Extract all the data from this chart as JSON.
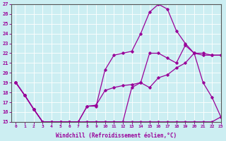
{
  "xlabel": "Windchill (Refroidissement éolien,°C)",
  "background_color": "#cceef2",
  "line_color": "#990099",
  "xlim": [
    -0.5,
    23
  ],
  "ylim": [
    15,
    27
  ],
  "yticks": [
    15,
    16,
    17,
    18,
    19,
    20,
    21,
    22,
    23,
    24,
    25,
    26,
    27
  ],
  "xticks": [
    0,
    1,
    2,
    3,
    4,
    5,
    6,
    7,
    8,
    9,
    10,
    11,
    12,
    13,
    14,
    15,
    16,
    17,
    18,
    19,
    20,
    21,
    22,
    23
  ],
  "line1_x": [
    0,
    1,
    2,
    3,
    4,
    5,
    6,
    7,
    8,
    9,
    10,
    11,
    12,
    13,
    14,
    15,
    16,
    17,
    18,
    19,
    20,
    21,
    22,
    23
  ],
  "line1_y": [
    19,
    17.7,
    16.3,
    15.0,
    15.0,
    15.0,
    15.0,
    14.9,
    15.0,
    15.0,
    15.0,
    15.0,
    15.0,
    15.0,
    15.0,
    15.0,
    15.0,
    15.0,
    15.0,
    15.0,
    15.0,
    15.0,
    15.0,
    15.5
  ],
  "line2_x": [
    0,
    1,
    2,
    3,
    4,
    5,
    6,
    7,
    8,
    9,
    10,
    11,
    12,
    13,
    14,
    15,
    16,
    17,
    18,
    19,
    20,
    21,
    22,
    23
  ],
  "line2_y": [
    19,
    17.7,
    16.3,
    15.0,
    15.0,
    15.0,
    15.0,
    15.0,
    16.6,
    16.7,
    18.2,
    18.5,
    18.7,
    18.8,
    19.0,
    18.5,
    19.5,
    19.8,
    20.5,
    21.0,
    22.0,
    22.0,
    21.8,
    21.8
  ],
  "line3_x": [
    0,
    1,
    2,
    3,
    4,
    5,
    6,
    7,
    8,
    9,
    10,
    11,
    12,
    13,
    14,
    15,
    16,
    17,
    18,
    19,
    20,
    21,
    22,
    23
  ],
  "line3_y": [
    19,
    17.7,
    16.3,
    15.0,
    15.0,
    15.0,
    15.0,
    15.0,
    15.0,
    15.0,
    15.0,
    15.0,
    15.0,
    18.5,
    19.0,
    22.0,
    22.0,
    21.5,
    21.0,
    22.8,
    22.0,
    21.8,
    21.8,
    21.8
  ],
  "line4_x": [
    0,
    1,
    2,
    3,
    4,
    5,
    6,
    7,
    8,
    9,
    10,
    11,
    12,
    13,
    14,
    15,
    16,
    17,
    18,
    19,
    20,
    21,
    22,
    23
  ],
  "line4_y": [
    19,
    17.7,
    16.3,
    15.0,
    15.0,
    15.0,
    15.0,
    15.0,
    16.6,
    16.6,
    20.3,
    21.8,
    22.0,
    22.2,
    24.0,
    26.2,
    27.0,
    26.5,
    24.3,
    23.0,
    22.0,
    19.0,
    17.5,
    15.5
  ]
}
